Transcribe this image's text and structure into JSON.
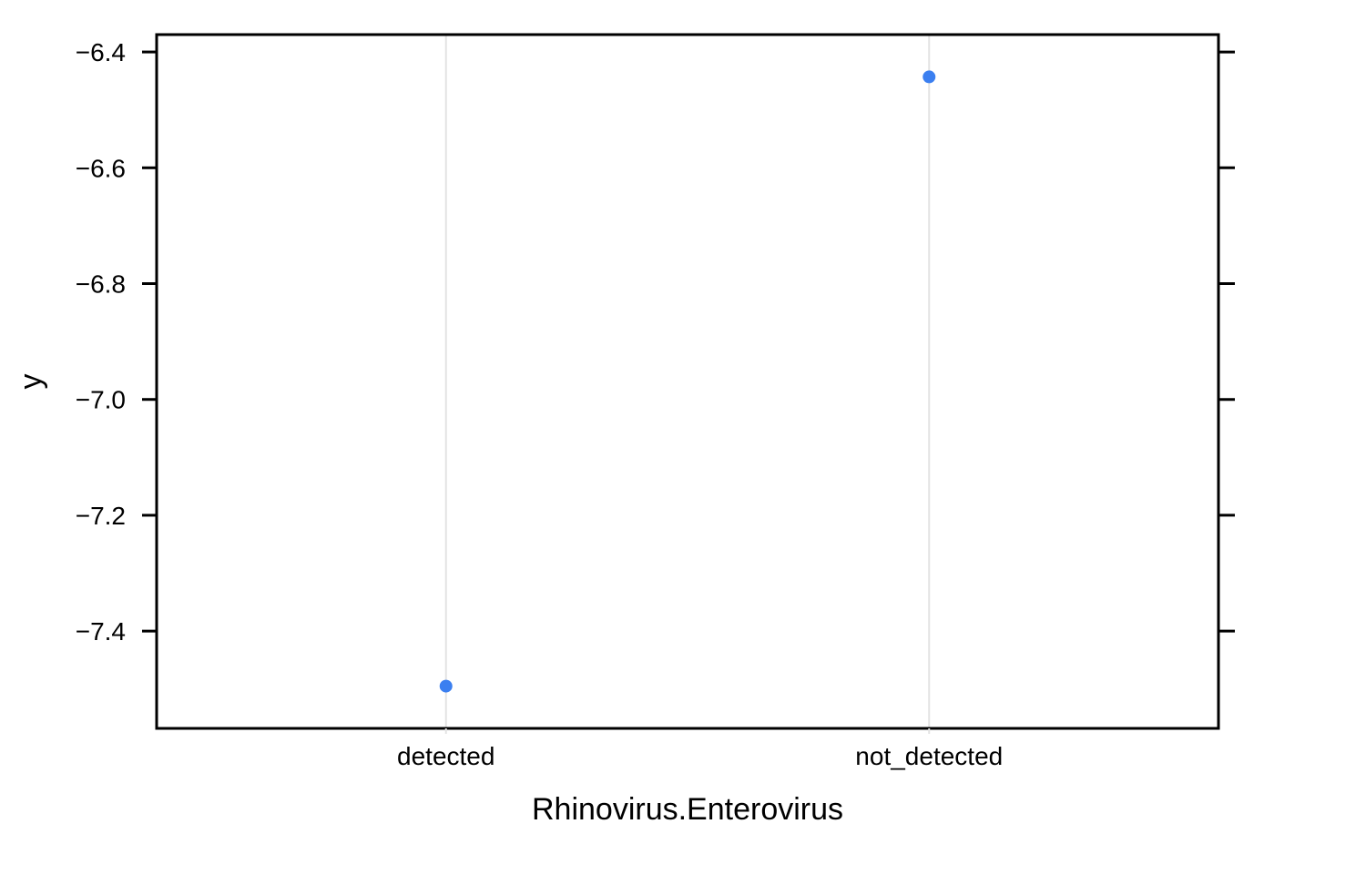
{
  "chart_data": {
    "type": "scatter",
    "title": "",
    "xlabel": "Rhinovirus.Enterovirus",
    "ylabel": "y",
    "categories": [
      "detected",
      "not_detected"
    ],
    "values": [
      -7.495,
      -6.443
    ],
    "ylim": [
      -7.568,
      -6.37
    ],
    "y_ticks": [
      -6.4,
      -6.6,
      -6.8,
      -7.0,
      -7.2,
      -7.4
    ],
    "y_tick_labels": [
      "−6.4",
      "−6.6",
      "−6.8",
      "−7.0",
      "−7.2",
      "−7.4"
    ],
    "grid": "vertical lines at categories",
    "legend": "none",
    "point_color": "#3b7ff0",
    "grid_color": "#e3e3e3"
  }
}
